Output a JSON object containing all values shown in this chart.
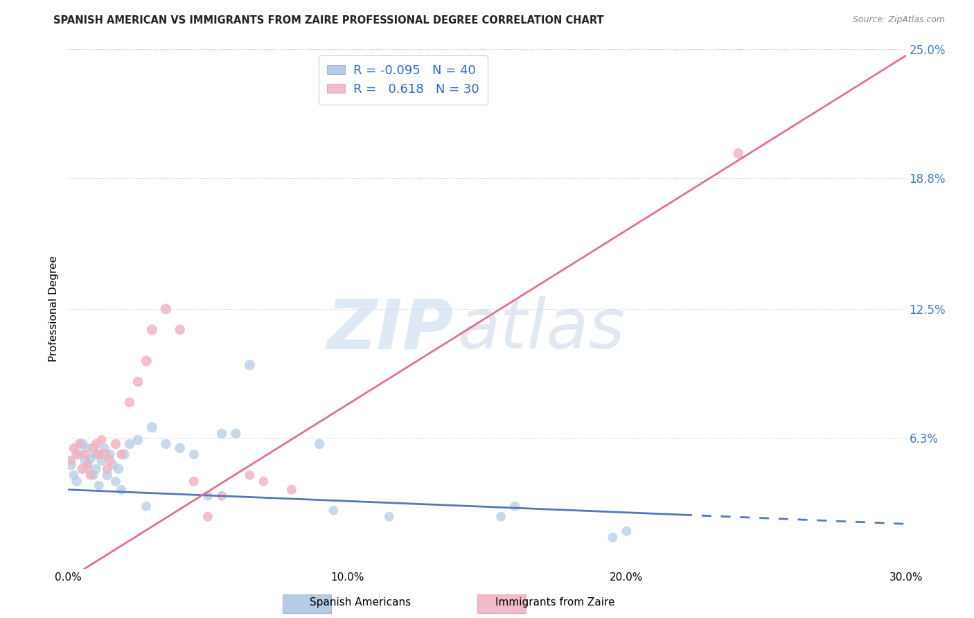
{
  "title": "SPANISH AMERICAN VS IMMIGRANTS FROM ZAIRE PROFESSIONAL DEGREE CORRELATION CHART",
  "source": "Source: ZipAtlas.com",
  "ylabel": "Professional Degree",
  "xlabel": "",
  "xlim": [
    0.0,
    0.3
  ],
  "ylim": [
    0.0,
    0.25
  ],
  "xtick_labels": [
    "0.0%",
    "10.0%",
    "20.0%",
    "30.0%"
  ],
  "xtick_vals": [
    0.0,
    0.1,
    0.2,
    0.3
  ],
  "ytick_labels": [
    "6.3%",
    "12.5%",
    "18.8%",
    "25.0%"
  ],
  "ytick_vals": [
    0.063,
    0.125,
    0.188,
    0.25
  ],
  "background_color": "#ffffff",
  "grid_color": "#c8c8c8",
  "blue_color": "#a8c4e0",
  "pink_color": "#f0b0c0",
  "blue_line_color": "#5577bb",
  "pink_line_color": "#dd7090",
  "R_blue": -0.095,
  "N_blue": 40,
  "R_pink": 0.618,
  "N_pink": 30,
  "watermark_zip": "ZIP",
  "watermark_atlas": "atlas",
  "legend_label_blue": "Spanish Americans",
  "legend_label_pink": "Immigrants from Zaire",
  "blue_line_y_intercept": 0.038,
  "blue_line_slope": -0.055,
  "blue_line_solid_end": 0.22,
  "pink_line_y_intercept": -0.005,
  "pink_line_slope": 0.84,
  "blue_scatter_x": [
    0.001,
    0.002,
    0.003,
    0.004,
    0.005,
    0.006,
    0.007,
    0.007,
    0.008,
    0.009,
    0.01,
    0.01,
    0.011,
    0.012,
    0.013,
    0.014,
    0.015,
    0.016,
    0.017,
    0.018,
    0.019,
    0.02,
    0.022,
    0.025,
    0.028,
    0.03,
    0.035,
    0.04,
    0.045,
    0.05,
    0.055,
    0.06,
    0.065,
    0.09,
    0.095,
    0.115,
    0.155,
    0.16,
    0.195,
    0.2
  ],
  "blue_scatter_y": [
    0.05,
    0.045,
    0.042,
    0.055,
    0.06,
    0.052,
    0.058,
    0.048,
    0.053,
    0.045,
    0.055,
    0.048,
    0.04,
    0.052,
    0.058,
    0.045,
    0.055,
    0.05,
    0.042,
    0.048,
    0.038,
    0.055,
    0.06,
    0.062,
    0.03,
    0.068,
    0.06,
    0.058,
    0.055,
    0.035,
    0.065,
    0.065,
    0.098,
    0.06,
    0.028,
    0.025,
    0.025,
    0.03,
    0.015,
    0.018
  ],
  "blue_scatter_sizes": [
    120,
    100,
    110,
    100,
    120,
    110,
    100,
    100,
    110,
    100,
    110,
    100,
    100,
    110,
    100,
    110,
    100,
    100,
    100,
    110,
    100,
    120,
    110,
    110,
    100,
    120,
    110,
    110,
    100,
    100,
    110,
    110,
    120,
    110,
    100,
    100,
    100,
    100,
    100,
    100
  ],
  "pink_scatter_x": [
    0.001,
    0.002,
    0.003,
    0.004,
    0.005,
    0.006,
    0.007,
    0.008,
    0.009,
    0.01,
    0.011,
    0.012,
    0.013,
    0.014,
    0.015,
    0.017,
    0.019,
    0.022,
    0.025,
    0.028,
    0.03,
    0.035,
    0.04,
    0.045,
    0.05,
    0.055,
    0.065,
    0.07,
    0.08,
    0.24
  ],
  "pink_scatter_y": [
    0.052,
    0.058,
    0.055,
    0.06,
    0.048,
    0.055,
    0.05,
    0.045,
    0.058,
    0.06,
    0.055,
    0.062,
    0.055,
    0.048,
    0.052,
    0.06,
    0.055,
    0.08,
    0.09,
    0.1,
    0.115,
    0.125,
    0.115,
    0.042,
    0.025,
    0.035,
    0.045,
    0.042,
    0.038,
    0.2
  ],
  "pink_scatter_sizes": [
    100,
    100,
    110,
    100,
    110,
    100,
    100,
    100,
    110,
    100,
    110,
    100,
    110,
    100,
    100,
    110,
    100,
    110,
    110,
    120,
    120,
    120,
    110,
    100,
    100,
    100,
    100,
    100,
    100,
    110
  ]
}
